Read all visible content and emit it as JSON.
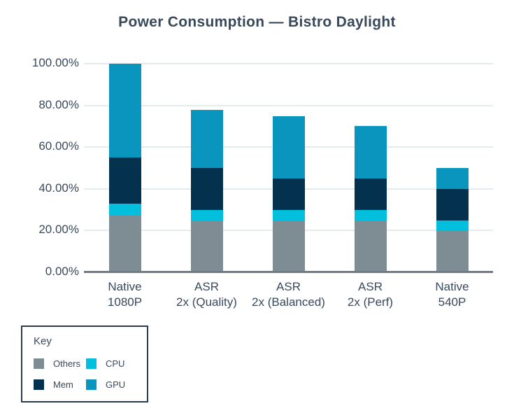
{
  "title": "Power Consumption — Bistro Daylight",
  "chart_data": {
    "type": "bar",
    "stacked": true,
    "title": "Power Consumption — Bistro Daylight",
    "categories": [
      "Native\n1080P",
      "ASR\n2x (Quality)",
      "ASR\n2x (Balanced)",
      "ASR\n2x (Perf)",
      "Native\n540P"
    ],
    "series": [
      {
        "name": "Others",
        "color": "#7e8c94",
        "values": [
          27.5,
          25,
          25,
          25,
          20
        ]
      },
      {
        "name": "CPU",
        "color": "#02c0dd",
        "values": [
          5.5,
          5,
          5,
          5,
          5
        ]
      },
      {
        "name": "Mem",
        "color": "#04314e",
        "values": [
          22,
          20,
          15,
          15,
          15
        ]
      },
      {
        "name": "GPU",
        "color": "#0995bd",
        "values": [
          45,
          28,
          30,
          25,
          10
        ]
      }
    ],
    "totals": [
      100,
      78,
      75,
      70,
      50
    ],
    "ylim": [
      0,
      100
    ],
    "yticks": [
      0,
      20,
      40,
      60,
      80,
      100
    ],
    "ytick_labels": [
      "0.00%",
      "20.00%",
      "40.00%",
      "60.00%",
      "80.00%",
      "100.00%"
    ],
    "grid": true,
    "legend": {
      "title": "Key",
      "position": "bottom-left",
      "entries_order": [
        "Others",
        "CPU",
        "Mem",
        "GPU"
      ]
    },
    "colors": {
      "text": "#39495c",
      "gridline": "#e4ebee",
      "axis_baseline": "#6e7b86",
      "legend_border": "#2b3c4e",
      "background": "#ffffff"
    }
  }
}
